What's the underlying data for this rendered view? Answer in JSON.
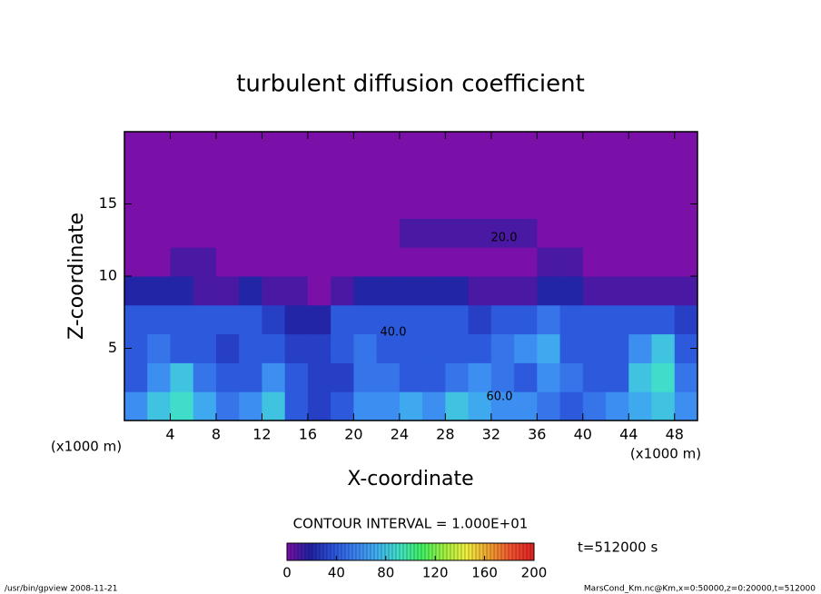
{
  "chart_data": {
    "type": "contour",
    "title": "turbulent diffusion coefficient",
    "xlabel": "X-coordinate",
    "ylabel": "Z-coordinate",
    "x_unit": "(x1000 m)",
    "xlim": [
      0,
      50
    ],
    "ylim": [
      0,
      20
    ],
    "xticks": [
      4,
      8,
      12,
      16,
      20,
      24,
      28,
      32,
      36,
      40,
      44,
      48
    ],
    "yticks": [
      5,
      10,
      15
    ],
    "x": [
      1,
      3,
      5,
      7,
      9,
      11,
      13,
      15,
      17,
      19,
      21,
      23,
      25,
      27,
      29,
      31,
      33,
      35,
      37,
      39,
      41,
      43,
      45,
      47,
      49
    ],
    "z": [
      1,
      3,
      5,
      7,
      9,
      11,
      13,
      15,
      17,
      19
    ],
    "values": [
      [
        60,
        80,
        90,
        70,
        50,
        60,
        80,
        40,
        30,
        40,
        60,
        60,
        70,
        60,
        80,
        70,
        60,
        60,
        50,
        40,
        50,
        60,
        70,
        80,
        60
      ],
      [
        40,
        60,
        80,
        50,
        40,
        40,
        60,
        40,
        30,
        30,
        50,
        50,
        40,
        40,
        50,
        60,
        50,
        40,
        60,
        50,
        40,
        40,
        80,
        90,
        50
      ],
      [
        40,
        50,
        40,
        40,
        30,
        40,
        40,
        30,
        30,
        40,
        50,
        40,
        40,
        40,
        40,
        40,
        50,
        60,
        70,
        40,
        40,
        40,
        60,
        80,
        40
      ],
      [
        40,
        40,
        40,
        40,
        40,
        40,
        30,
        20,
        20,
        40,
        40,
        40,
        40,
        40,
        40,
        30,
        40,
        40,
        50,
        40,
        40,
        40,
        40,
        40,
        30
      ],
      [
        20,
        20,
        20,
        10,
        10,
        20,
        10,
        10,
        0,
        10,
        20,
        20,
        20,
        20,
        20,
        10,
        10,
        10,
        20,
        20,
        10,
        10,
        10,
        10,
        10
      ],
      [
        0,
        0,
        10,
        10,
        0,
        0,
        0,
        0,
        0,
        0,
        0,
        0,
        0,
        0,
        0,
        0,
        0,
        0,
        10,
        10,
        0,
        0,
        0,
        0,
        0
      ],
      [
        0,
        0,
        0,
        0,
        0,
        0,
        0,
        0,
        0,
        0,
        0,
        0,
        10,
        10,
        10,
        10,
        10,
        10,
        0,
        0,
        0,
        0,
        0,
        0,
        0
      ],
      [
        0,
        0,
        0,
        0,
        0,
        0,
        0,
        0,
        0,
        0,
        0,
        0,
        0,
        0,
        0,
        0,
        0,
        0,
        0,
        0,
        0,
        0,
        0,
        0,
        0
      ],
      [
        0,
        0,
        0,
        0,
        0,
        0,
        0,
        0,
        0,
        0,
        0,
        0,
        0,
        0,
        0,
        0,
        0,
        0,
        0,
        0,
        0,
        0,
        0,
        0,
        0
      ],
      [
        0,
        0,
        0,
        0,
        0,
        0,
        0,
        0,
        0,
        0,
        0,
        0,
        0,
        0,
        0,
        0,
        0,
        0,
        0,
        0,
        0,
        0,
        0,
        0,
        0
      ]
    ],
    "contour_labels": [
      "20.0",
      "40.0",
      "60.0"
    ],
    "clim": [
      0,
      200
    ],
    "colorbar_ticks": [
      0,
      40,
      80,
      120,
      160,
      200
    ],
    "colors": [
      "#7a10a8",
      "#2020a0",
      "#2a50d8",
      "#3a80f0",
      "#40b0f0",
      "#40e0c8",
      "#40f060",
      "#a0f040",
      "#f0f040",
      "#f0a030",
      "#f05030",
      "#e02020"
    ],
    "contour_interval": "CONTOUR INTERVAL = 1.000E+01",
    "time": "t=512000 s",
    "footer_left": "/usr/bin/gpview  2008-11-21",
    "footer_right": "MarsCond_Km.nc@Km,x=0:50000,z=0:20000,t=512000"
  }
}
